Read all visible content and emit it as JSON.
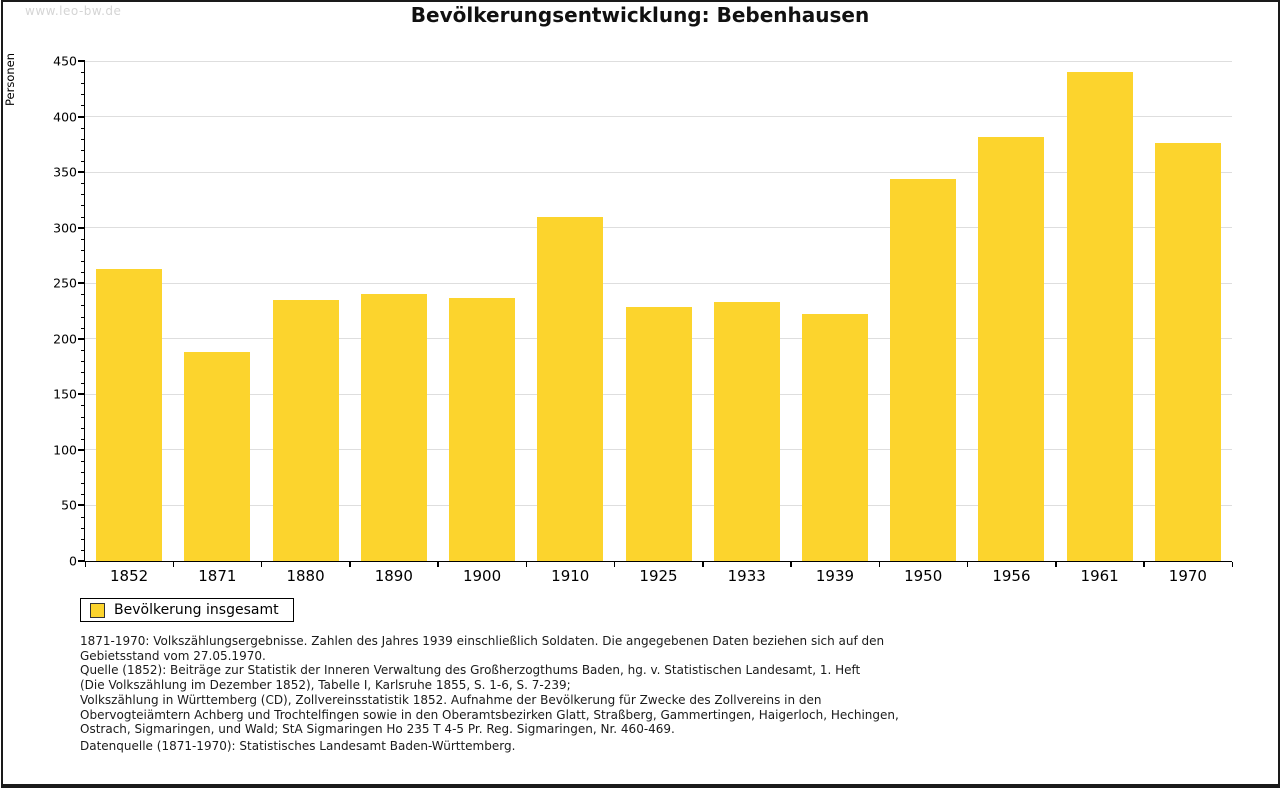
{
  "watermark": "www.leo-bw.de",
  "title": "Bevölkerungsentwicklung: Bebenhausen",
  "chart_data": {
    "type": "bar",
    "title": "Bevölkerungsentwicklung: Bebenhausen",
    "categories": [
      "1852",
      "1871",
      "1880",
      "1890",
      "1900",
      "1910",
      "1925",
      "1933",
      "1939",
      "1950",
      "1956",
      "1961",
      "1970"
    ],
    "values": [
      263,
      188,
      235,
      240,
      237,
      310,
      229,
      233,
      222,
      344,
      382,
      440,
      376
    ],
    "series_name": "Bevölkerung insgesamt",
    "xlabel": "",
    "ylabel": "Personen",
    "ylim": [
      0,
      450
    ],
    "ytick_major": 50,
    "ytick_minor": 10,
    "grid": true,
    "legend_position": "bottom-left",
    "colors": {
      "bar": "#FCD42D",
      "grid": "#DEDEDE",
      "axis": "#000000",
      "watermark": "#D5D5D5"
    }
  },
  "legend": {
    "label": "Bevölkerung insgesamt"
  },
  "footnotes": {
    "lines": [
      "1871-1970: Volkszählungsergebnisse. Zahlen des Jahres 1939 einschließlich Soldaten. Die angegebenen Daten beziehen sich auf den",
      "Gebietsstand vom 27.05.1970.",
      "Quelle (1852): Beiträge zur Statistik der Inneren Verwaltung des Großherzogthums Baden, hg. v. Statistischen Landesamt, 1. Heft",
      "(Die Volkszählung im Dezember 1852), Tabelle I, Karlsruhe 1855, S. 1-6, S. 7-239;",
      "Volkszählung in Württemberg (CD), Zollvereinsstatistik 1852. Aufnahme der Bevölkerung für Zwecke des Zollvereins in den",
      "Obervogteiämtern Achberg und Trochtelfingen sowie in den Oberamtsbezirken Glatt, Straßberg, Gammertingen, Haigerloch, Hechingen,",
      "Ostrach, Sigmaringen, und Wald; StA Sigmaringen Ho 235 T 4-5 Pr. Reg. Sigmaringen, Nr. 460-469."
    ],
    "datasource": "Datenquelle (1871-1970): Statistisches Landesamt Baden-Württemberg."
  }
}
